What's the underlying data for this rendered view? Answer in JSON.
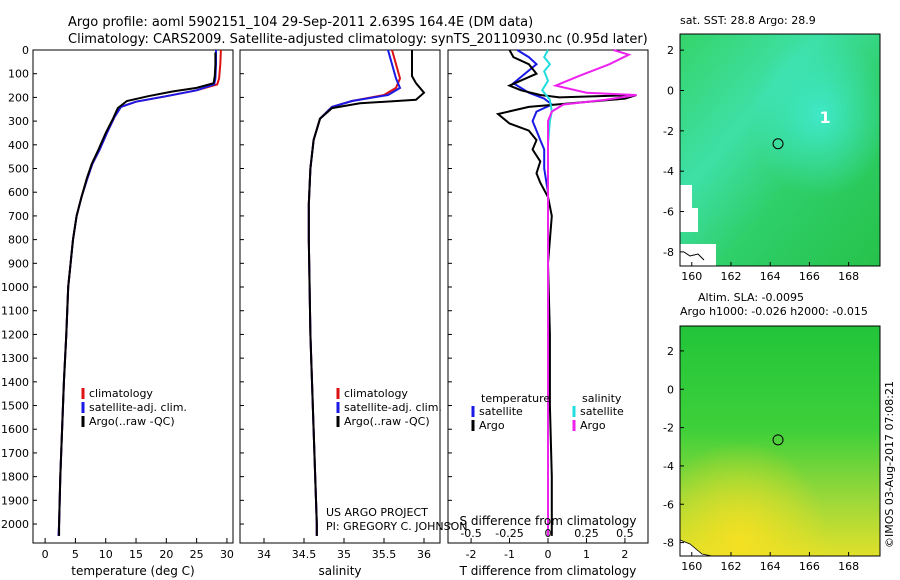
{
  "title": {
    "line1": "Argo profile: aoml 5902151_104 29-Sep-2011 2.639S 164.4E (DM data)",
    "line2": "Climatology: CARS2009. Satellite-adjusted climatology: synTS_20110930.nc (0.95d later)"
  },
  "colors": {
    "climatology": "#dd1111",
    "satellite": "#1a1ae6",
    "argo": "#000000",
    "salinity_argo": "#ee22ee",
    "salinity_sat": "#22dddd"
  },
  "credits": {
    "project": "US ARGO PROJECT",
    "pi": "PI: GREGORY C. JOHNSON",
    "imos": "©IMOS 03-Aug-2017 07:08:21"
  },
  "chart_data": [
    {
      "type": "line",
      "name": "temperature",
      "xlabel": "temperature (deg C)",
      "ylabel": "",
      "xlim": [
        -2,
        31
      ],
      "ylim": [
        2080,
        0
      ],
      "xticks": [
        "0",
        "5",
        "10",
        "15",
        "20",
        "25",
        "30"
      ],
      "xtick_values": [
        0,
        5,
        10,
        15,
        20,
        25,
        30
      ],
      "yticks": [
        "0",
        "100",
        "200",
        "300",
        "400",
        "500",
        "600",
        "700",
        "800",
        "900",
        "1000",
        "1100",
        "1200",
        "1300",
        "1400",
        "1500",
        "1600",
        "1700",
        "1800",
        "1900",
        "2000"
      ],
      "legend": [
        "climatology",
        "satellite-adj. clim.",
        "Argo(..raw -QC)"
      ],
      "series": [
        {
          "name": "climatology",
          "color": "climatology",
          "points": [
            [
              29,
              0
            ],
            [
              28.9,
              60
            ],
            [
              28.7,
              120
            ],
            [
              28.4,
              145
            ],
            [
              25,
              170
            ],
            [
              20,
              195
            ],
            [
              15,
              218
            ],
            [
              12.5,
              240
            ],
            [
              11.5,
              280
            ],
            [
              10.2,
              350
            ],
            [
              9,
              420
            ],
            [
              7.8,
              480
            ],
            [
              7,
              540
            ],
            [
              6,
              620
            ],
            [
              5.2,
              700
            ],
            [
              4.6,
              800
            ],
            [
              4.2,
              900
            ],
            [
              3.8,
              1000
            ],
            [
              3.5,
              1200
            ],
            [
              3.1,
              1400
            ],
            [
              2.8,
              1600
            ],
            [
              2.5,
              1800
            ],
            [
              2.3,
              2000
            ],
            [
              2.2,
              2050
            ]
          ]
        },
        {
          "name": "satellite-adj. clim.",
          "color": "satellite",
          "points": [
            [
              28.2,
              0
            ],
            [
              28.2,
              60
            ],
            [
              28.1,
              120
            ],
            [
              27.9,
              145
            ],
            [
              25,
              170
            ],
            [
              20,
              195
            ],
            [
              15,
              218
            ],
            [
              12.5,
              240
            ],
            [
              11.5,
              280
            ],
            [
              10.2,
              350
            ],
            [
              9,
              420
            ],
            [
              7.8,
              480
            ],
            [
              7,
              540
            ],
            [
              6,
              620
            ],
            [
              5.2,
              700
            ],
            [
              4.6,
              800
            ],
            [
              4.2,
              900
            ],
            [
              3.8,
              1000
            ],
            [
              3.5,
              1200
            ],
            [
              3.1,
              1400
            ],
            [
              2.8,
              1600
            ],
            [
              2.5,
              1800
            ],
            [
              2.3,
              2000
            ],
            [
              2.2,
              2050
            ]
          ]
        },
        {
          "name": "Argo(..raw -QC)",
          "color": "argo",
          "points": [
            [
              28.1,
              10
            ],
            [
              28.1,
              60
            ],
            [
              28.0,
              110
            ],
            [
              27.8,
              140
            ],
            [
              25,
              160
            ],
            [
              21,
              175
            ],
            [
              17,
              195
            ],
            [
              13.5,
              215
            ],
            [
              12,
              245
            ],
            [
              11.2,
              290
            ],
            [
              10,
              350
            ],
            [
              8.8,
              420
            ],
            [
              7.7,
              480
            ],
            [
              6.9,
              540
            ],
            [
              6,
              620
            ],
            [
              5.2,
              700
            ],
            [
              4.6,
              800
            ],
            [
              4.2,
              900
            ],
            [
              3.8,
              1000
            ],
            [
              3.5,
              1200
            ],
            [
              3.1,
              1400
            ],
            [
              2.8,
              1600
            ],
            [
              2.5,
              1800
            ],
            [
              2.3,
              2000
            ],
            [
              2.3,
              2050
            ]
          ]
        }
      ]
    },
    {
      "type": "line",
      "name": "salinity",
      "xlabel": "salinity",
      "xlim": [
        33.7,
        36.2
      ],
      "ylim": [
        2080,
        0
      ],
      "xticks": [
        "34",
        "34.5",
        "35",
        "35.5",
        "36"
      ],
      "xtick_values": [
        34,
        34.5,
        35,
        35.5,
        36
      ],
      "legend": [
        "climatology",
        "satellite-adj. clim.",
        "Argo(..raw -QC)"
      ],
      "series": [
        {
          "name": "climatology",
          "color": "climatology",
          "points": [
            [
              35.6,
              0
            ],
            [
              35.65,
              60
            ],
            [
              35.7,
              120
            ],
            [
              35.65,
              160
            ],
            [
              35.5,
              190
            ],
            [
              35.1,
              215
            ],
            [
              34.85,
              240
            ],
            [
              34.7,
              290
            ],
            [
              34.62,
              380
            ],
            [
              34.58,
              500
            ],
            [
              34.56,
              650
            ],
            [
              34.56,
              800
            ],
            [
              34.57,
              1000
            ],
            [
              34.58,
              1200
            ],
            [
              34.6,
              1400
            ],
            [
              34.62,
              1600
            ],
            [
              34.64,
              1800
            ],
            [
              34.66,
              2000
            ],
            [
              34.66,
              2050
            ]
          ]
        },
        {
          "name": "satellite-adj. clim.",
          "color": "satellite",
          "points": [
            [
              35.55,
              0
            ],
            [
              35.6,
              60
            ],
            [
              35.65,
              120
            ],
            [
              35.7,
              160
            ],
            [
              35.55,
              190
            ],
            [
              35.1,
              215
            ],
            [
              34.85,
              240
            ],
            [
              34.7,
              290
            ],
            [
              34.62,
              380
            ],
            [
              34.58,
              500
            ],
            [
              34.56,
              650
            ],
            [
              34.56,
              800
            ],
            [
              34.57,
              1000
            ],
            [
              34.58,
              1200
            ],
            [
              34.6,
              1400
            ],
            [
              34.62,
              1600
            ],
            [
              34.64,
              1800
            ],
            [
              34.66,
              2000
            ],
            [
              34.66,
              2050
            ]
          ]
        },
        {
          "name": "Argo(..raw -QC)",
          "color": "argo",
          "points": [
            [
              35.85,
              0
            ],
            [
              35.85,
              40
            ],
            [
              35.85,
              110
            ],
            [
              35.9,
              140
            ],
            [
              36.0,
              180
            ],
            [
              35.9,
              210
            ],
            [
              35.2,
              225
            ],
            [
              34.85,
              245
            ],
            [
              34.7,
              290
            ],
            [
              34.62,
              380
            ],
            [
              34.58,
              500
            ],
            [
              34.56,
              650
            ],
            [
              34.56,
              800
            ],
            [
              34.57,
              1000
            ],
            [
              34.58,
              1200
            ],
            [
              34.6,
              1400
            ],
            [
              34.62,
              1600
            ],
            [
              34.64,
              1800
            ],
            [
              34.66,
              2000
            ],
            [
              34.66,
              2050
            ]
          ]
        }
      ]
    },
    {
      "type": "line",
      "name": "difference",
      "xlabel": "T difference from climatology",
      "xlabel_top": "S difference from climatology",
      "xlim": [
        -2.6,
        2.6
      ],
      "ylim": [
        2080,
        0
      ],
      "xticks": [
        "-2",
        "-1",
        "0",
        "1",
        "2"
      ],
      "xtick_values": [
        -2,
        -1,
        0,
        1,
        2
      ],
      "sticks": [
        "-0.5",
        "-0.25",
        "0",
        "0.25",
        "0.5"
      ],
      "legend_t": {
        "title": "temperature",
        "items": [
          "satellite",
          "Argo"
        ]
      },
      "legend_s": {
        "title": "salinity",
        "items": [
          "satellite",
          "Argo"
        ]
      },
      "series": [
        {
          "name": "temperature satellite",
          "color": "satellite",
          "points": [
            [
              -0.8,
              0
            ],
            [
              -0.5,
              30
            ],
            [
              -0.3,
              60
            ],
            [
              -0.9,
              140
            ],
            [
              -0.5,
              180
            ],
            [
              -0.1,
              205
            ],
            [
              0.1,
              230
            ],
            [
              -0.3,
              260
            ],
            [
              -0.4,
              300
            ],
            [
              -0.3,
              340
            ],
            [
              -0.2,
              380
            ],
            [
              -0.1,
              420
            ],
            [
              -0.1,
              500
            ],
            [
              0,
              600
            ],
            [
              0,
              800
            ],
            [
              0,
              1000
            ],
            [
              0,
              2000
            ],
            [
              0,
              2050
            ]
          ]
        },
        {
          "name": "temperature Argo",
          "color": "argo",
          "points": [
            [
              -1.0,
              0
            ],
            [
              -0.9,
              30
            ],
            [
              -0.5,
              60
            ],
            [
              -0.3,
              100
            ],
            [
              -1.0,
              150
            ],
            [
              -0.7,
              170
            ],
            [
              -0.2,
              190
            ],
            [
              0.3,
              200
            ],
            [
              2.3,
              190
            ],
            [
              2.0,
              205
            ],
            [
              0.6,
              225
            ],
            [
              -0.5,
              240
            ],
            [
              -1.3,
              270
            ],
            [
              -1.0,
              310
            ],
            [
              -0.5,
              340
            ],
            [
              -0.3,
              380
            ],
            [
              -0.4,
              420
            ],
            [
              -0.2,
              470
            ],
            [
              -0.3,
              520
            ],
            [
              -0.2,
              560
            ],
            [
              0,
              620
            ],
            [
              0.1,
              700
            ],
            [
              0,
              900
            ],
            [
              0.05,
              1200
            ],
            [
              0.05,
              1500
            ],
            [
              0.1,
              1800
            ],
            [
              0.1,
              2000
            ],
            [
              0.1,
              2050
            ]
          ]
        },
        {
          "name": "salinity satellite",
          "color": "salinity_sat",
          "points": [
            [
              0,
              0
            ],
            [
              -0.1,
              30
            ],
            [
              0.05,
              60
            ],
            [
              -0.1,
              90
            ],
            [
              0,
              130
            ],
            [
              -0.15,
              170
            ],
            [
              0.05,
              210
            ],
            [
              0.1,
              260
            ],
            [
              0.05,
              300
            ],
            [
              0,
              400
            ],
            [
              0,
              600
            ],
            [
              0,
              800
            ],
            [
              0,
              1000
            ],
            [
              0,
              2000
            ],
            [
              0,
              2050
            ]
          ]
        },
        {
          "name": "salinity Argo",
          "color": "salinity_argo",
          "points": [
            [
              1.7,
              0
            ],
            [
              2.1,
              20
            ],
            [
              1.6,
              60
            ],
            [
              0.8,
              110
            ],
            [
              0.2,
              150
            ],
            [
              1.0,
              180
            ],
            [
              2.3,
              190
            ],
            [
              1.5,
              210
            ],
            [
              0.4,
              230
            ],
            [
              0.1,
              260
            ],
            [
              0,
              300
            ],
            [
              0,
              400
            ],
            [
              0,
              600
            ],
            [
              0,
              800
            ],
            [
              0,
              1000
            ],
            [
              0,
              2000
            ],
            [
              0,
              2050
            ]
          ]
        }
      ]
    },
    {
      "type": "heatmap",
      "name": "sst-map",
      "title": "sat. SST: 28.8 Argo: 28.9",
      "xlim": [
        159.4,
        169.6
      ],
      "ylim": [
        -8.7,
        2.8
      ],
      "xticks": [
        "160",
        "162",
        "164",
        "166",
        "168"
      ],
      "xtick_values": [
        160,
        162,
        164,
        166,
        168
      ],
      "yticks": [
        "2",
        "0",
        "-2",
        "-4",
        "-6",
        "-8"
      ],
      "ytick_values": [
        2,
        0,
        -2,
        -4,
        -6,
        -8
      ],
      "marker": [
        164.4,
        -2.64
      ],
      "marker_label": "1"
    },
    {
      "type": "heatmap",
      "name": "sla-map",
      "title": "Altim. SLA: -0.0095",
      "subtitle": "Argo h1000: -0.026 h2000: -0.015",
      "xlim": [
        159.4,
        169.6
      ],
      "ylim": [
        -8.7,
        3.3
      ],
      "xticks": [
        "160",
        "162",
        "164",
        "166",
        "168"
      ],
      "xtick_values": [
        160,
        162,
        164,
        166,
        168
      ],
      "yticks": [
        "2",
        "0",
        "-2",
        "-4",
        "-6",
        "-8"
      ],
      "ytick_values": [
        2,
        0,
        -2,
        -4,
        -6,
        -8
      ],
      "marker": [
        164.4,
        -2.64
      ]
    }
  ]
}
